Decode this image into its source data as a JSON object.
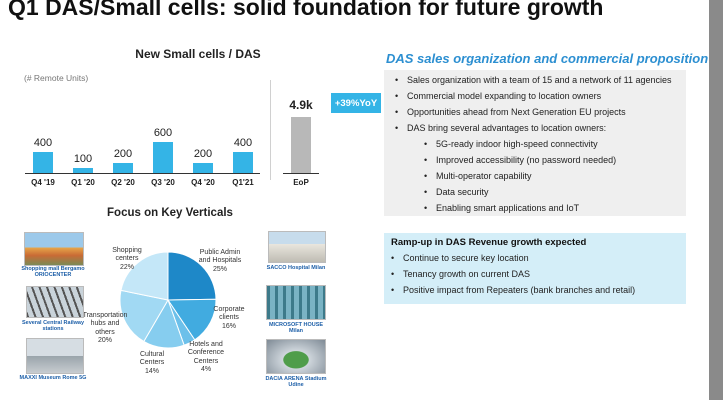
{
  "title": "Q1 DAS/Small cells: solid foundation for future growth",
  "chart_data": [
    {
      "type": "bar",
      "title": "New Small cells / DAS",
      "subtitle": "(# Remote Units)",
      "categories": [
        "Q4 '19",
        "Q1 '20",
        "Q2 '20",
        "Q3 '20",
        "Q4 '20",
        "Q1'21"
      ],
      "values": [
        400,
        100,
        200,
        600,
        200,
        400
      ],
      "value_labels": [
        "400",
        "100",
        "200",
        "600",
        "200",
        "400"
      ],
      "highlight_color": "#34b4e6",
      "ylim": [
        0,
        650
      ]
    },
    {
      "type": "bar",
      "categories": [
        "EoP"
      ],
      "values": [
        4.9
      ],
      "value_labels": [
        "4.9k"
      ],
      "color": "#b8b8b8",
      "annotation": "+39%YoY"
    },
    {
      "type": "pie",
      "title": "Focus on Key Verticals",
      "slices": [
        {
          "label": "Public Admin and Hospitals",
          "value": 25,
          "pct": "25%",
          "color": "#1e88c8"
        },
        {
          "label": "Corporate clients",
          "value": 16,
          "pct": "16%",
          "color": "#41abe0"
        },
        {
          "label": "Hotels and Conference Centers",
          "value": 4,
          "pct": "4%",
          "color": "#6cc0ea"
        },
        {
          "label": "Cultural Centers",
          "value": 14,
          "pct": "14%",
          "color": "#86cdef"
        },
        {
          "label": "Transportation hubs and others",
          "value": 20,
          "pct": "20%",
          "color": "#a1d9f3"
        },
        {
          "label": "Shopping centers",
          "value": 22,
          "pct": "22%",
          "color": "#c4e7f8"
        }
      ]
    }
  ],
  "photos": {
    "left": [
      {
        "caption": "Shopping mall Bergamo ORIOCENTER",
        "icon": "shopping-mall-photo"
      },
      {
        "caption": "Several Central Railway stations",
        "icon": "railway-station-photo"
      },
      {
        "caption": "MAXXI Museum Rome 5G",
        "icon": "museum-photo"
      }
    ],
    "right": [
      {
        "caption": "SACCO Hospital Milan",
        "icon": "hospital-photo"
      },
      {
        "caption": "MICROSOFT HOUSE Milan",
        "icon": "office-building-photo"
      },
      {
        "caption": "DACIA ARENA Stadium Udine",
        "icon": "stadium-photo"
      }
    ]
  },
  "das": {
    "title": "DAS sales organization and commercial proposition",
    "bullets": [
      "Sales organization with a team of 15 and a network of 11 agencies",
      "Commercial model expanding to location owners",
      "Opportunities ahead from Next Generation EU projects",
      "DAS bring several advantages to location owners:"
    ],
    "sub_bullets": [
      "5G-ready indoor high-speed connectivity",
      "Improved accessibility (no password needed)",
      "Multi-operator capability",
      "Data security",
      "Enabling smart applications and IoT"
    ]
  },
  "ramp": {
    "title": "Ramp-up in DAS Revenue growth expected",
    "bullets": [
      "Continue to secure key location",
      "Tenancy growth on current DAS",
      "Positive impact from Repeaters (bank branches and retail)"
    ]
  }
}
